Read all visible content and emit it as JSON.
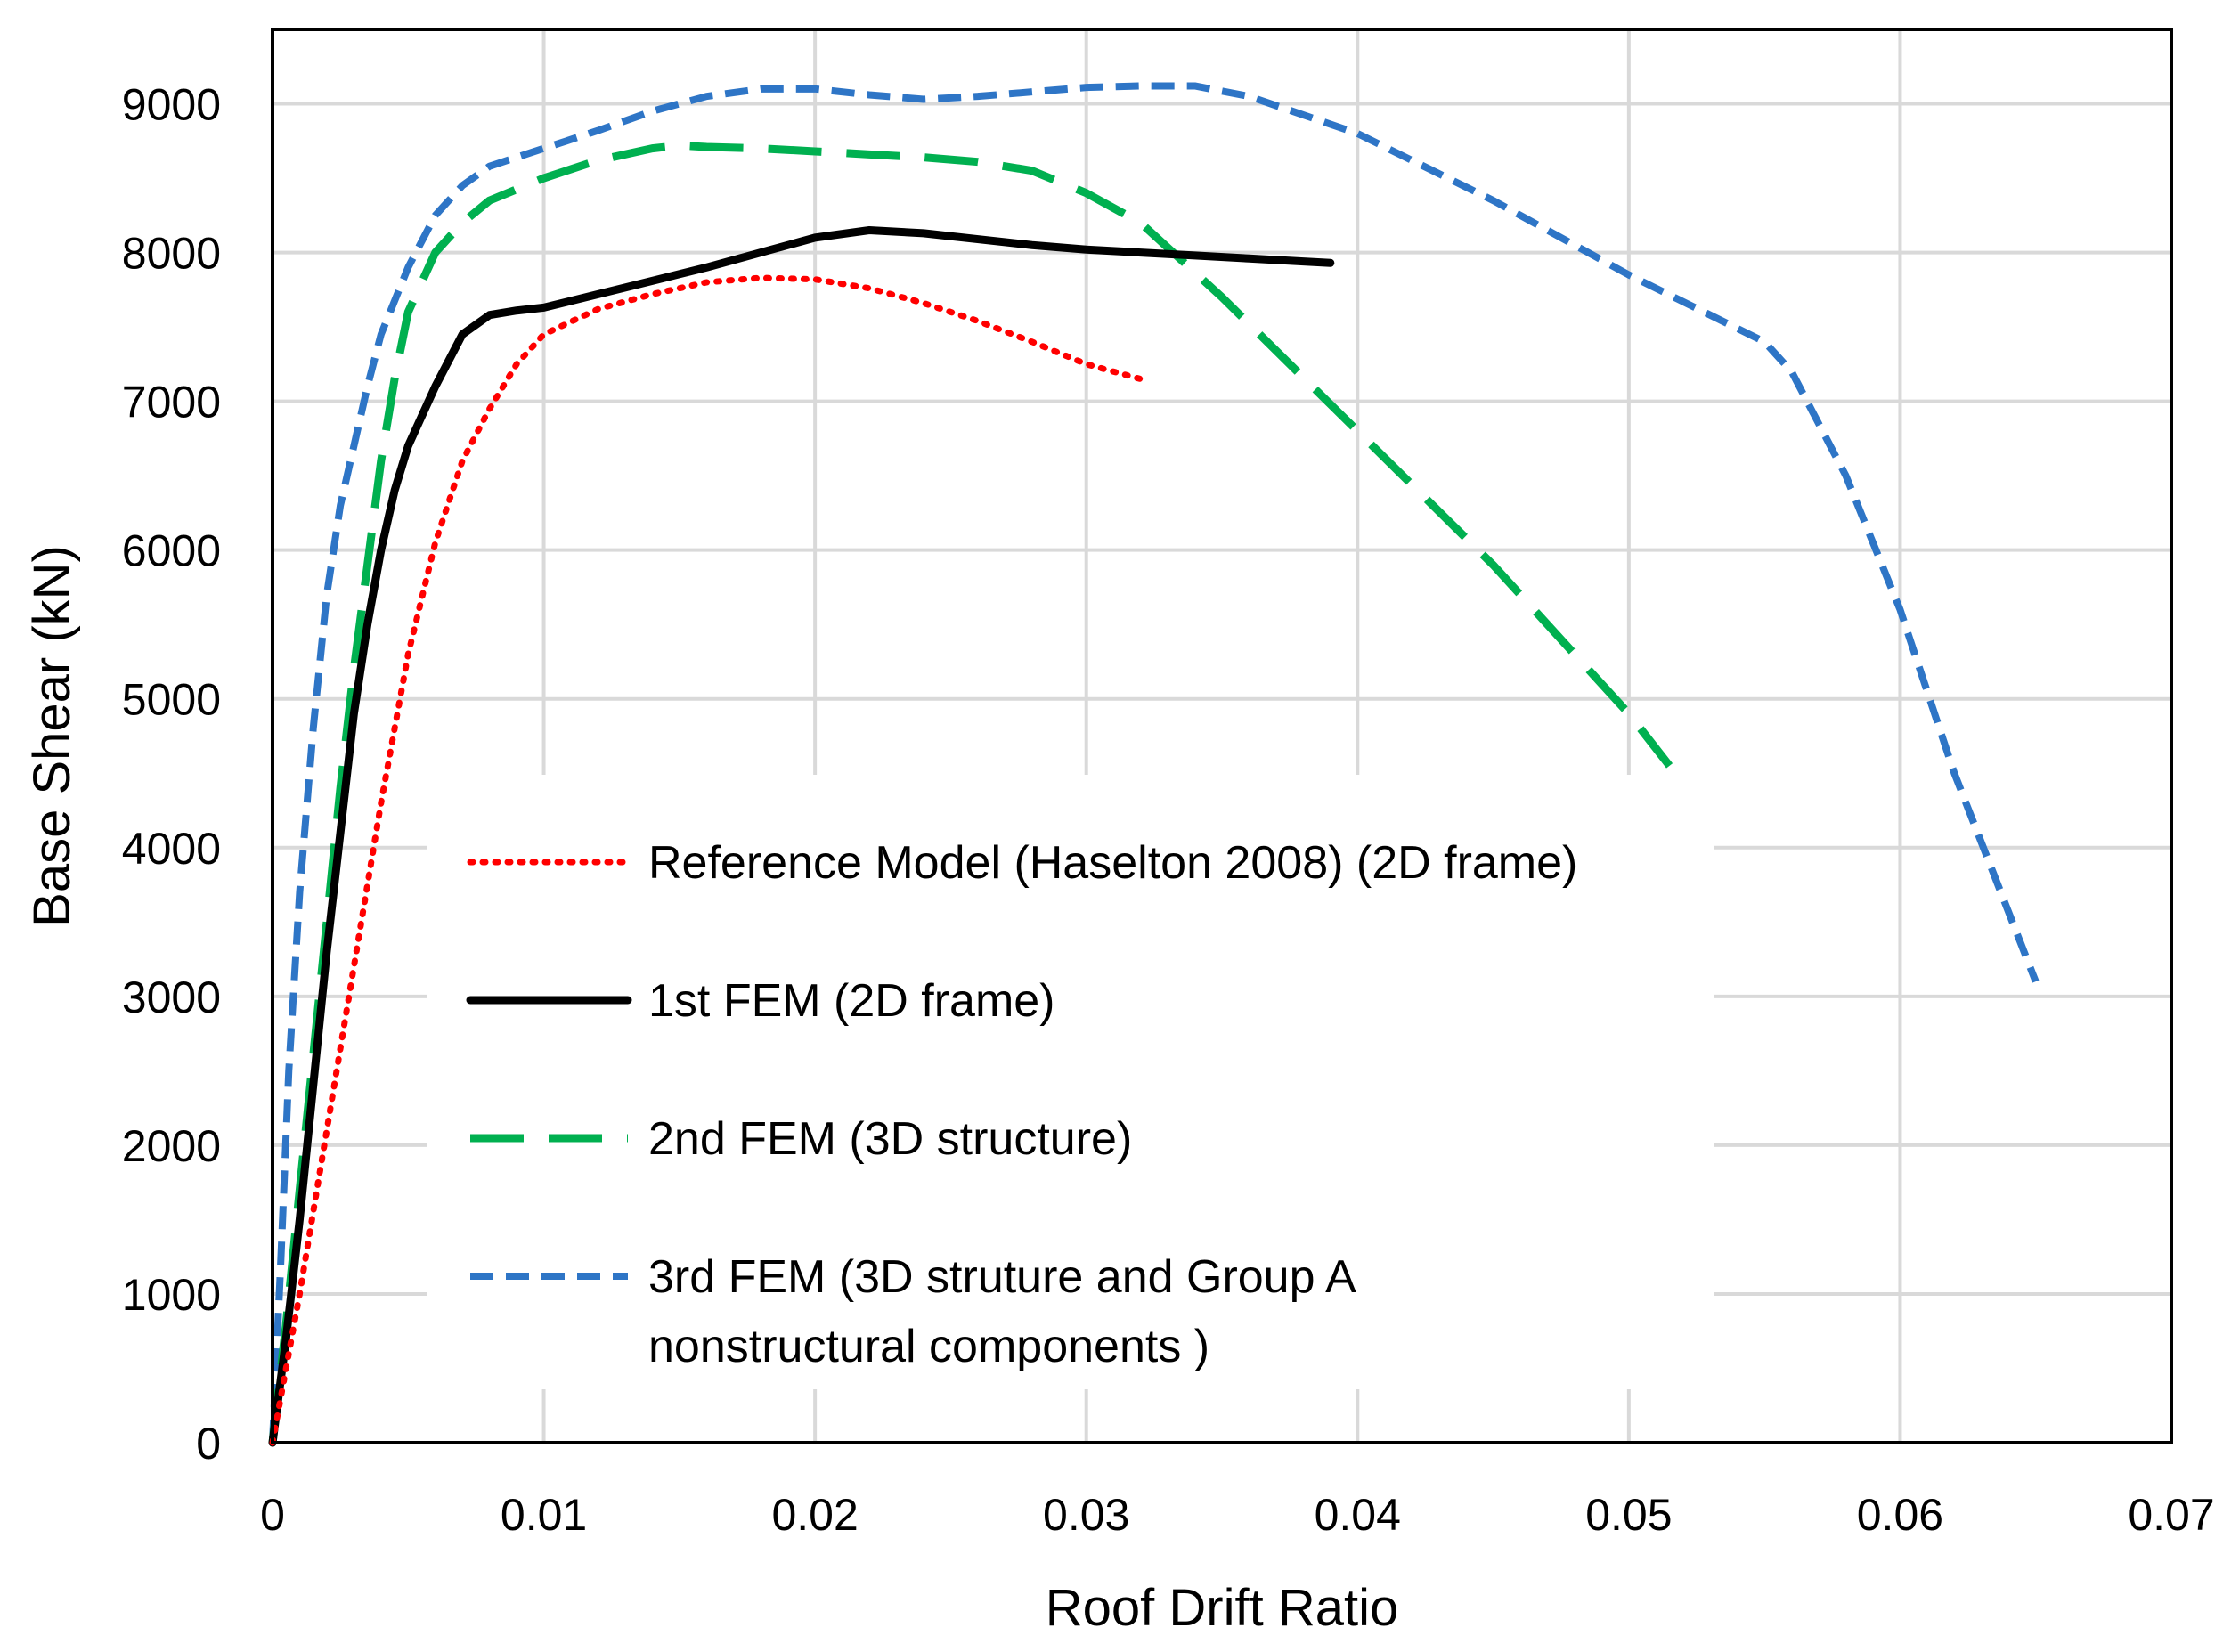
{
  "chart_data": {
    "type": "line",
    "title": "",
    "xlabel": "Roof Drift Ratio",
    "ylabel": "Base Shear (kN)",
    "xlim": [
      0,
      0.07
    ],
    "ylim": [
      0,
      9500
    ],
    "grid": true,
    "x_ticks": [
      {
        "value": 0,
        "label": "0"
      },
      {
        "value": 0.01,
        "label": "0.01"
      },
      {
        "value": 0.02,
        "label": "0.02"
      },
      {
        "value": 0.03,
        "label": "0.03"
      },
      {
        "value": 0.04,
        "label": "0.04"
      },
      {
        "value": 0.05,
        "label": "0.05"
      },
      {
        "value": 0.06,
        "label": "0.06"
      },
      {
        "value": 0.07,
        "label": "0.07"
      }
    ],
    "y_ticks": [
      {
        "value": 0,
        "label": "0"
      },
      {
        "value": 1000,
        "label": "1000"
      },
      {
        "value": 2000,
        "label": "2000"
      },
      {
        "value": 3000,
        "label": "3000"
      },
      {
        "value": 4000,
        "label": "4000"
      },
      {
        "value": 5000,
        "label": "5000"
      },
      {
        "value": 6000,
        "label": "6000"
      },
      {
        "value": 7000,
        "label": "7000"
      },
      {
        "value": 8000,
        "label": "8000"
      },
      {
        "value": 9000,
        "label": "9000"
      }
    ],
    "legend_position": "center-left",
    "series": [
      {
        "name": "Reference Model (Haselton 2008) (2D frame)",
        "legend_lines": [
          "Reference Model (Haselton 2008) (2D frame)"
        ],
        "color": "#ff0000",
        "style": "dotted",
        "x": [
          0,
          0.001,
          0.002,
          0.003,
          0.004,
          0.005,
          0.006,
          0.007,
          0.008,
          0.009,
          0.01,
          0.012,
          0.014,
          0.016,
          0.018,
          0.02,
          0.022,
          0.024,
          0.026,
          0.028,
          0.03,
          0.032
        ],
        "y": [
          0,
          1000,
          2100,
          3200,
          4300,
          5300,
          6050,
          6600,
          6950,
          7250,
          7450,
          7620,
          7720,
          7800,
          7830,
          7820,
          7760,
          7660,
          7540,
          7400,
          7250,
          7150
        ]
      },
      {
        "name": "1st FEM (2D frame)",
        "legend_lines": [
          "1st FEM (2D frame)"
        ],
        "color": "#000000",
        "style": "solid",
        "x": [
          0,
          0.0005,
          0.001,
          0.0015,
          0.002,
          0.0025,
          0.003,
          0.0035,
          0.004,
          0.0045,
          0.005,
          0.006,
          0.007,
          0.008,
          0.009,
          0.01,
          0.012,
          0.014,
          0.016,
          0.018,
          0.02,
          0.022,
          0.024,
          0.026,
          0.028,
          0.03,
          0.032,
          0.034,
          0.036,
          0.038,
          0.039
        ],
        "y": [
          0,
          700,
          1500,
          2400,
          3300,
          4100,
          4900,
          5500,
          6000,
          6400,
          6700,
          7100,
          7450,
          7580,
          7610,
          7630,
          7720,
          7810,
          7900,
          8000,
          8100,
          8150,
          8130,
          8090,
          8050,
          8020,
          8000,
          7980,
          7960,
          7940,
          7930
        ]
      },
      {
        "name": "2nd FEM (3D structure)",
        "legend_lines": [
          "2nd FEM (3D structure)"
        ],
        "color": "#00b050",
        "style": "dashed",
        "x": [
          0,
          0.0005,
          0.001,
          0.0015,
          0.002,
          0.0025,
          0.003,
          0.0035,
          0.004,
          0.0045,
          0.005,
          0.006,
          0.007,
          0.008,
          0.01,
          0.012,
          0.014,
          0.015,
          0.016,
          0.018,
          0.02,
          0.022,
          0.024,
          0.026,
          0.028,
          0.03,
          0.032,
          0.035,
          0.04,
          0.045,
          0.05,
          0.0515
        ],
        "y": [
          0,
          800,
          1700,
          2600,
          3500,
          4400,
          5200,
          5900,
          6600,
          7150,
          7600,
          8000,
          8200,
          8350,
          8500,
          8620,
          8700,
          8720,
          8710,
          8700,
          8680,
          8660,
          8640,
          8610,
          8550,
          8400,
          8200,
          7700,
          6800,
          5900,
          4900,
          4550
        ]
      },
      {
        "name": "3rd FEM (3D struture and Group A nonstructural components )",
        "legend_lines": [
          "3rd FEM (3D struture and Group A",
          "nonstructural components )"
        ],
        "color": "#2e75c6",
        "style": "short-dashed",
        "x": [
          0,
          0.0003,
          0.0006,
          0.001,
          0.0015,
          0.002,
          0.0025,
          0.003,
          0.0035,
          0.004,
          0.005,
          0.006,
          0.007,
          0.008,
          0.01,
          0.012,
          0.014,
          0.016,
          0.018,
          0.02,
          0.022,
          0.024,
          0.026,
          0.028,
          0.03,
          0.032,
          0.034,
          0.036,
          0.04,
          0.045,
          0.05,
          0.055,
          0.056,
          0.058,
          0.06,
          0.062,
          0.065
        ],
        "y": [
          0,
          1200,
          2500,
          3700,
          4800,
          5700,
          6300,
          6700,
          7100,
          7450,
          7900,
          8250,
          8450,
          8580,
          8700,
          8820,
          8950,
          9050,
          9100,
          9100,
          9060,
          9030,
          9050,
          9080,
          9110,
          9120,
          9120,
          9050,
          8800,
          8350,
          7850,
          7400,
          7200,
          6500,
          5600,
          4500,
          3100
        ]
      }
    ]
  }
}
